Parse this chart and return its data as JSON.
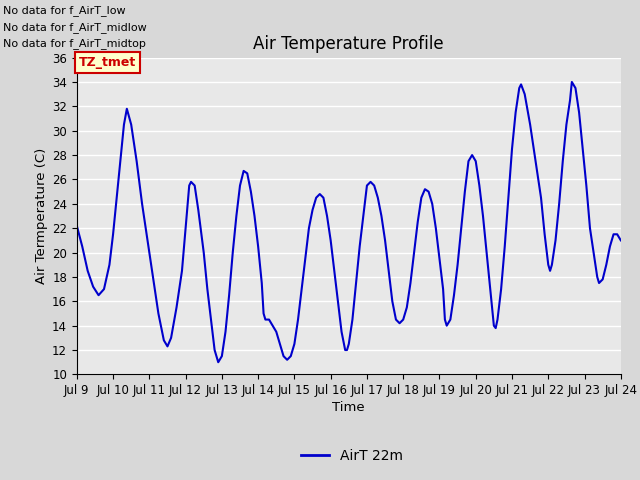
{
  "title": "Air Temperature Profile",
  "xlabel": "Time",
  "ylabel": "Air Termperature (C)",
  "xlim_start": 9,
  "xlim_end": 24,
  "ylim": [
    10,
    36
  ],
  "yticks": [
    10,
    12,
    14,
    16,
    18,
    20,
    22,
    24,
    26,
    28,
    30,
    32,
    34,
    36
  ],
  "xtick_labels": [
    "Jul 9",
    "Jul 10",
    "Jul 11",
    "Jul 12",
    "Jul 13",
    "Jul 14",
    "Jul 15",
    "Jul 16",
    "Jul 17",
    "Jul 18",
    "Jul 19",
    "Jul 20",
    "Jul 21",
    "Jul 22",
    "Jul 23",
    "Jul 24"
  ],
  "line_color": "#0000cc",
  "line_width": 1.5,
  "legend_label": "AirT 22m",
  "bg_color": "#d8d8d8",
  "plot_bg_color": "#e8e8e8",
  "grid_color": "#ffffff",
  "annotations": [
    "No data for f_AirT_low",
    "No data for f_AirT_midlow",
    "No data for f_AirT_midtop"
  ],
  "tz_label": "TZ_tmet",
  "time_series": [
    9.0,
    22.2,
    9.15,
    20.5,
    9.3,
    18.5,
    9.45,
    17.2,
    9.6,
    16.5,
    9.75,
    17.0,
    9.9,
    19.0,
    10.0,
    21.5,
    10.1,
    24.5,
    10.2,
    27.5,
    10.3,
    30.5,
    10.38,
    31.8,
    10.5,
    30.5,
    10.65,
    27.5,
    10.8,
    24.0,
    10.95,
    21.0,
    11.1,
    18.0,
    11.25,
    15.0,
    11.4,
    12.8,
    11.5,
    12.3,
    11.6,
    13.0,
    11.75,
    15.5,
    11.9,
    18.5,
    12.0,
    22.0,
    12.1,
    25.5,
    12.15,
    25.8,
    12.25,
    25.5,
    12.35,
    23.5,
    12.5,
    20.0,
    12.6,
    17.0,
    12.7,
    14.5,
    12.8,
    12.0,
    12.9,
    11.0,
    13.0,
    11.5,
    13.1,
    13.5,
    13.2,
    16.5,
    13.3,
    20.0,
    13.4,
    23.0,
    13.5,
    25.5,
    13.6,
    26.7,
    13.7,
    26.5,
    13.8,
    25.0,
    13.9,
    23.0,
    14.0,
    20.5,
    14.1,
    17.5,
    14.15,
    15.0,
    14.2,
    14.5,
    14.3,
    14.5,
    14.4,
    14.0,
    14.5,
    13.5,
    14.6,
    12.5,
    14.7,
    11.5,
    14.8,
    11.2,
    14.9,
    11.5,
    15.0,
    12.5,
    15.1,
    14.5,
    15.2,
    17.0,
    15.3,
    19.5,
    15.4,
    22.0,
    15.5,
    23.5,
    15.6,
    24.5,
    15.7,
    24.8,
    15.8,
    24.5,
    15.9,
    23.0,
    16.0,
    21.0,
    16.1,
    18.5,
    16.2,
    16.0,
    16.3,
    13.5,
    16.4,
    12.0,
    16.45,
    12.0,
    16.5,
    12.5,
    16.6,
    14.5,
    16.7,
    17.5,
    16.8,
    20.5,
    16.9,
    23.0,
    17.0,
    25.5,
    17.1,
    25.8,
    17.2,
    25.5,
    17.3,
    24.5,
    17.4,
    23.0,
    17.5,
    21.0,
    17.6,
    18.5,
    17.7,
    16.0,
    17.8,
    14.5,
    17.9,
    14.2,
    18.0,
    14.5,
    18.1,
    15.5,
    18.2,
    17.5,
    18.3,
    20.0,
    18.4,
    22.5,
    18.5,
    24.5,
    18.6,
    25.2,
    18.7,
    25.0,
    18.8,
    24.0,
    18.9,
    22.0,
    19.0,
    19.5,
    19.1,
    17.0,
    19.15,
    14.5,
    19.2,
    14.0,
    19.3,
    14.5,
    19.4,
    16.5,
    19.5,
    19.0,
    19.6,
    22.0,
    19.7,
    25.0,
    19.8,
    27.5,
    19.9,
    28.0,
    20.0,
    27.5,
    20.1,
    25.5,
    20.2,
    23.0,
    20.3,
    20.0,
    20.4,
    17.0,
    20.5,
    14.0,
    20.55,
    13.8,
    20.6,
    14.5,
    20.7,
    17.0,
    20.8,
    20.5,
    20.9,
    24.5,
    21.0,
    28.5,
    21.1,
    31.5,
    21.2,
    33.5,
    21.25,
    33.8,
    21.35,
    33.0,
    21.5,
    30.5,
    21.65,
    27.5,
    21.8,
    24.5,
    21.9,
    21.5,
    22.0,
    19.0,
    22.05,
    18.5,
    22.1,
    19.0,
    22.2,
    21.0,
    22.3,
    24.0,
    22.4,
    27.5,
    22.5,
    30.5,
    22.6,
    32.5,
    22.65,
    34.0,
    22.75,
    33.5,
    22.85,
    31.5,
    22.95,
    28.5,
    23.05,
    25.5,
    23.15,
    22.0,
    23.25,
    20.0,
    23.35,
    18.0,
    23.4,
    17.5,
    23.5,
    17.8,
    23.6,
    19.0,
    23.7,
    20.5,
    23.8,
    21.5,
    23.9,
    21.5,
    24.0,
    21.0
  ]
}
